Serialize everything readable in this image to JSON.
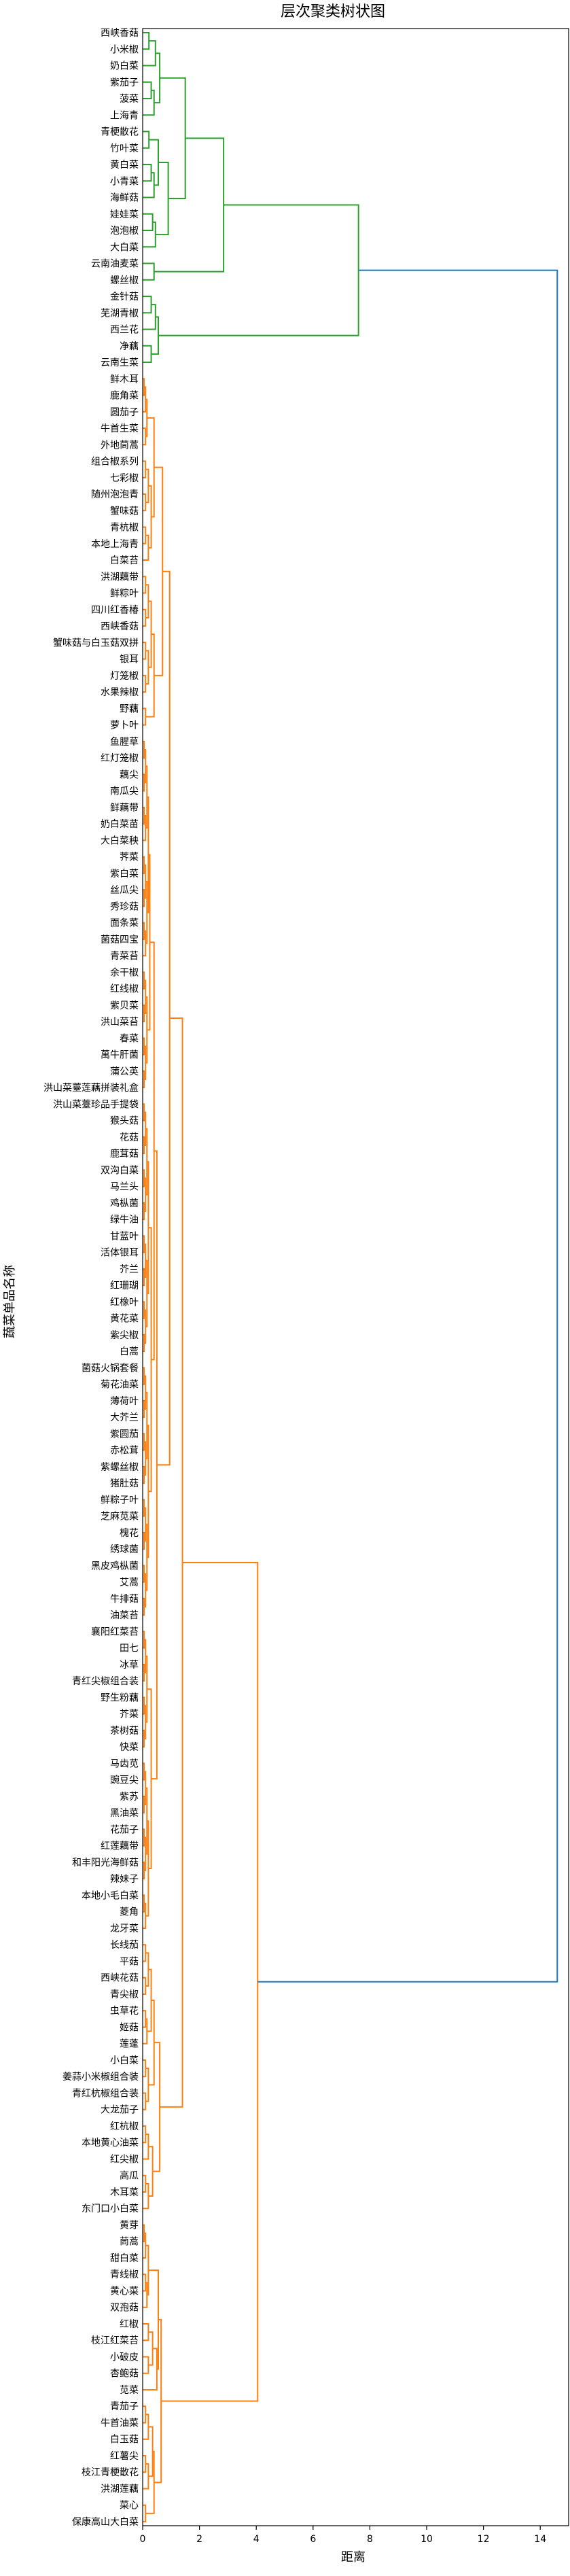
{
  "chart_data": {
    "type": "dendrogram",
    "title": "层次聚类树状图",
    "xlabel": "距离",
    "ylabel": "蔬菜单品名称",
    "xlim": [
      0,
      15
    ],
    "xticks": [
      0,
      2,
      4,
      6,
      8,
      10,
      12,
      14
    ],
    "grid": false,
    "colors": {
      "cluster_green": "#2ca02c",
      "cluster_orange": "#ff7f0e",
      "above_threshold": "#1f77b4",
      "axis": "#000000"
    },
    "leaves": [
      "西峡香菇",
      "小米椒",
      "奶白菜",
      "紫茄子",
      "菠菜",
      "上海青",
      "青梗散花",
      "竹叶菜",
      "黄白菜",
      "小青菜",
      "海鲜菇",
      "娃娃菜",
      "泡泡椒",
      "大白菜",
      "云南油麦菜",
      "螺丝椒",
      "金针菇",
      "芜湖青椒",
      "西兰花",
      "净藕",
      "云南生菜",
      "鲜木耳",
      "鹿角菜",
      "圆茄子",
      "牛首生菜",
      "外地茼蒿",
      "组合椒系列",
      "七彩椒",
      "随州泡泡青",
      "蟹味菇",
      "青杭椒",
      "本地上海青",
      "白菜苔",
      "洪湖藕带",
      "鲜粽叶",
      "四川红香椿",
      "西峡香菇",
      "蟹味菇与白玉菇双拼",
      "银耳",
      "灯笼椒",
      "水果辣椒",
      "野藕",
      "萝卜叶",
      "鱼腥草",
      "红灯笼椒",
      "藕尖",
      "南瓜尖",
      "鲜藕带",
      "奶白菜苗",
      "大白菜秧",
      "荠菜",
      "紫白菜",
      "丝瓜尖",
      "秀珍菇",
      "面条菜",
      "菌菇四宝",
      "青菜苔",
      "余干椒",
      "红线椒",
      "紫贝菜",
      "洪山菜苔",
      "春菜",
      "萬牛肝菌",
      "蒲公英",
      "洪山菜薹莲藕拼装礼盒",
      "洪山菜薹珍品手提袋",
      "猴头菇",
      "花菇",
      "鹿茸菇",
      "双沟白菜",
      "马兰头",
      "鸡枞菌",
      "绿牛油",
      "甘蓝叶",
      "活体银耳",
      "芥兰",
      "红珊瑚",
      "红橡叶",
      "黄花菜",
      "紫尖椒",
      "白蒿",
      "菌菇火锅套餐",
      "菊花油菜",
      "薄荷叶",
      "大芥兰",
      "紫圆茄",
      "赤松茸",
      "紫螺丝椒",
      "猪肚菇",
      "鲜粽子叶",
      "芝麻苋菜",
      "槐花",
      "绣球菌",
      "黑皮鸡枞菌",
      "艾蒿",
      "牛排菇",
      "油菜苔",
      "襄阳红菜苔",
      "田七",
      "冰草",
      "青红尖椒组合装",
      "野生粉藕",
      "芥菜",
      "茶树菇",
      "快菜",
      "马齿苋",
      "豌豆尖",
      "紫苏",
      "黑油菜",
      "花茄子",
      "红莲藕带",
      "和丰阳光海鲜菇",
      "辣妹子",
      "本地小毛白菜",
      "菱角",
      "龙牙菜",
      "长线茄",
      "平菇",
      "西峡花菇",
      "青尖椒",
      "虫草花",
      "姬菇",
      "莲蓬",
      "小白菜",
      "姜蒜小米椒组合装",
      "青红杭椒组合装",
      "大龙茄子",
      "红杭椒",
      "本地黄心油菜",
      "红尖椒",
      "高瓜",
      "木耳菜",
      "东门口小白菜",
      "黄芽",
      "茼蒿",
      "甜白菜",
      "青线椒",
      "黄心菜",
      "双孢菇",
      "红椒",
      "枝江红菜苔",
      "小破皮",
      "杏鲍菇",
      "苋菜",
      "青茄子",
      "牛首油菜",
      "白玉菇",
      "红薯尖",
      "枝江青梗散花",
      "洪湖莲藕",
      "菜心",
      "保康高山大白菜"
    ],
    "merges": [
      {
        "k": "g01",
        "a": 0,
        "b": 1,
        "h": 0.22,
        "c": "green"
      },
      {
        "k": "g02",
        "a": "g01",
        "b": 2,
        "h": 0.45,
        "c": "green"
      },
      {
        "k": "g03",
        "a": 3,
        "b": 4,
        "h": 0.3,
        "c": "green"
      },
      {
        "k": "g04",
        "a": "g03",
        "b": 5,
        "h": 0.4,
        "c": "green"
      },
      {
        "k": "g05",
        "a": "g02",
        "b": "g04",
        "h": 0.6,
        "c": "green"
      },
      {
        "k": "g06",
        "a": 6,
        "b": 7,
        "h": 0.22,
        "c": "green"
      },
      {
        "k": "g07",
        "a": 8,
        "b": 9,
        "h": 0.3,
        "c": "green"
      },
      {
        "k": "g08",
        "a": "g07",
        "b": 10,
        "h": 0.4,
        "c": "green"
      },
      {
        "k": "g09",
        "a": "g06",
        "b": "g08",
        "h": 0.55,
        "c": "green"
      },
      {
        "k": "g10",
        "a": 11,
        "b": 12,
        "h": 0.35,
        "c": "green"
      },
      {
        "k": "g11",
        "a": "g10",
        "b": 13,
        "h": 0.45,
        "c": "green"
      },
      {
        "k": "g12",
        "a": "g09",
        "b": "g11",
        "h": 0.9,
        "c": "green"
      },
      {
        "k": "g13",
        "a": "g05",
        "b": "g12",
        "h": 1.5,
        "c": "green"
      },
      {
        "k": "g14",
        "a": 14,
        "b": 15,
        "h": 0.4,
        "c": "green"
      },
      {
        "k": "g15",
        "a": "g13",
        "b": "g14",
        "h": 2.85,
        "c": "green"
      },
      {
        "k": "g16",
        "a": 16,
        "b": 17,
        "h": 0.3,
        "c": "green"
      },
      {
        "k": "g17",
        "a": "g16",
        "b": 18,
        "h": 0.45,
        "c": "green"
      },
      {
        "k": "g18",
        "a": 19,
        "b": 20,
        "h": 0.3,
        "c": "green"
      },
      {
        "k": "g19",
        "a": "g17",
        "b": "g18",
        "h": 0.55,
        "c": "green"
      },
      {
        "k": "g20",
        "a": "g15",
        "b": "g19",
        "h": 7.6,
        "c": "green"
      },
      {
        "k": "o01",
        "a": 21,
        "b": 22,
        "h": 0.05,
        "c": "orange"
      },
      {
        "k": "o02",
        "a": "o01",
        "b": 23,
        "h": 0.1,
        "c": "orange"
      },
      {
        "k": "o03",
        "a": 24,
        "b": 25,
        "h": 0.1,
        "c": "orange"
      },
      {
        "k": "o04",
        "a": "o02",
        "b": "o03",
        "h": 0.15,
        "c": "orange"
      },
      {
        "k": "o05",
        "a": 26,
        "b": 27,
        "h": 0.1,
        "c": "orange"
      },
      {
        "k": "o06",
        "a": 28,
        "b": 29,
        "h": 0.1,
        "c": "orange"
      },
      {
        "k": "o07",
        "a": "o05",
        "b": "o06",
        "h": 0.2,
        "c": "orange"
      },
      {
        "k": "o08",
        "a": 30,
        "b": 31,
        "h": 0.1,
        "c": "orange"
      },
      {
        "k": "o09",
        "a": "o08",
        "b": 32,
        "h": 0.2,
        "c": "orange"
      },
      {
        "k": "o10",
        "a": "o07",
        "b": "o09",
        "h": 0.3,
        "c": "orange"
      },
      {
        "k": "o11",
        "a": "o04",
        "b": "o10",
        "h": 0.4,
        "c": "orange"
      },
      {
        "k": "o12",
        "a": 33,
        "b": 34,
        "h": 0.1,
        "c": "orange"
      },
      {
        "k": "o13",
        "a": 35,
        "b": 36,
        "h": 0.1,
        "c": "orange"
      },
      {
        "k": "o14",
        "a": "o12",
        "b": "o13",
        "h": 0.2,
        "c": "orange"
      },
      {
        "k": "o15",
        "a": 37,
        "b": 38,
        "h": 0.1,
        "c": "orange"
      },
      {
        "k": "o16",
        "a": 39,
        "b": 40,
        "h": 0.1,
        "c": "orange"
      },
      {
        "k": "o17",
        "a": "o15",
        "b": "o16",
        "h": 0.2,
        "c": "orange"
      },
      {
        "k": "o18",
        "a": "o14",
        "b": "o17",
        "h": 0.3,
        "c": "orange"
      },
      {
        "k": "o19",
        "a": 41,
        "b": 42,
        "h": 0.1,
        "c": "orange"
      },
      {
        "k": "o20",
        "a": "o18",
        "b": "o19",
        "h": 0.4,
        "c": "orange"
      },
      {
        "k": "o21",
        "a": "o11",
        "b": "o20",
        "h": 0.7,
        "c": "orange"
      },
      {
        "k": "o22",
        "a": 43,
        "b": 44,
        "h": 0.05,
        "c": "orange"
      },
      {
        "k": "o23",
        "a": 45,
        "b": 46,
        "h": 0.05,
        "c": "orange"
      },
      {
        "k": "o24",
        "a": "o22",
        "b": "o23",
        "h": 0.1,
        "c": "orange"
      },
      {
        "k": "o25",
        "a": 47,
        "b": 48,
        "h": 0.05,
        "c": "orange"
      },
      {
        "k": "o26",
        "a": "o25",
        "b": 49,
        "h": 0.1,
        "c": "orange"
      },
      {
        "k": "o27",
        "a": "o24",
        "b": "o26",
        "h": 0.15,
        "c": "orange"
      },
      {
        "k": "o28",
        "a": 50,
        "b": 51,
        "h": 0.05,
        "c": "orange"
      },
      {
        "k": "o29",
        "a": 52,
        "b": 53,
        "h": 0.05,
        "c": "orange"
      },
      {
        "k": "o30",
        "a": "o28",
        "b": "o29",
        "h": 0.1,
        "c": "orange"
      },
      {
        "k": "o31",
        "a": 54,
        "b": 55,
        "h": 0.05,
        "c": "orange"
      },
      {
        "k": "o32",
        "a": "o31",
        "b": 56,
        "h": 0.1,
        "c": "orange"
      },
      {
        "k": "o33",
        "a": "o30",
        "b": "o32",
        "h": 0.15,
        "c": "orange"
      },
      {
        "k": "o34",
        "a": "o27",
        "b": "o33",
        "h": 0.2,
        "c": "orange"
      },
      {
        "k": "o35",
        "a": 57,
        "b": 58,
        "h": 0.05,
        "c": "orange"
      },
      {
        "k": "o36",
        "a": 59,
        "b": 60,
        "h": 0.05,
        "c": "orange"
      },
      {
        "k": "o37",
        "a": "o35",
        "b": "o36",
        "h": 0.1,
        "c": "orange"
      },
      {
        "k": "o38",
        "a": 61,
        "b": 62,
        "h": 0.05,
        "c": "orange"
      },
      {
        "k": "o39",
        "a": 63,
        "b": 64,
        "h": 0.05,
        "c": "orange"
      },
      {
        "k": "o40",
        "a": "o38",
        "b": "o39",
        "h": 0.1,
        "c": "orange"
      },
      {
        "k": "o41",
        "a": "o37",
        "b": "o40",
        "h": 0.15,
        "c": "orange"
      },
      {
        "k": "o42",
        "a": "o34",
        "b": "o41",
        "h": 0.25,
        "c": "orange"
      },
      {
        "k": "o43",
        "a": 65,
        "b": 66,
        "h": 0.05,
        "c": "orange"
      },
      {
        "k": "o44",
        "a": 67,
        "b": 68,
        "h": 0.05,
        "c": "orange"
      },
      {
        "k": "o45",
        "a": "o43",
        "b": "o44",
        "h": 0.1,
        "c": "orange"
      },
      {
        "k": "o46",
        "a": 69,
        "b": 70,
        "h": 0.05,
        "c": "orange"
      },
      {
        "k": "o47",
        "a": 71,
        "b": 72,
        "h": 0.05,
        "c": "orange"
      },
      {
        "k": "o48",
        "a": "o46",
        "b": "o47",
        "h": 0.1,
        "c": "orange"
      },
      {
        "k": "o49",
        "a": "o45",
        "b": "o48",
        "h": 0.15,
        "c": "orange"
      },
      {
        "k": "o50",
        "a": 73,
        "b": 74,
        "h": 0.05,
        "c": "orange"
      },
      {
        "k": "o51",
        "a": 75,
        "b": 76,
        "h": 0.05,
        "c": "orange"
      },
      {
        "k": "o52",
        "a": "o50",
        "b": "o51",
        "h": 0.1,
        "c": "orange"
      },
      {
        "k": "o53",
        "a": 77,
        "b": 78,
        "h": 0.05,
        "c": "orange"
      },
      {
        "k": "o54",
        "a": 79,
        "b": 80,
        "h": 0.05,
        "c": "orange"
      },
      {
        "k": "o55",
        "a": "o53",
        "b": "o54",
        "h": 0.1,
        "c": "orange"
      },
      {
        "k": "o56",
        "a": "o52",
        "b": "o55",
        "h": 0.15,
        "c": "orange"
      },
      {
        "k": "o57",
        "a": "o49",
        "b": "o56",
        "h": 0.2,
        "c": "orange"
      },
      {
        "k": "o58",
        "a": 81,
        "b": 82,
        "h": 0.05,
        "c": "orange"
      },
      {
        "k": "o59",
        "a": 83,
        "b": 84,
        "h": 0.05,
        "c": "orange"
      },
      {
        "k": "o60",
        "a": "o58",
        "b": "o59",
        "h": 0.1,
        "c": "orange"
      },
      {
        "k": "o61",
        "a": 85,
        "b": 86,
        "h": 0.05,
        "c": "orange"
      },
      {
        "k": "o62",
        "a": 87,
        "b": 88,
        "h": 0.05,
        "c": "orange"
      },
      {
        "k": "o63",
        "a": "o61",
        "b": "o62",
        "h": 0.1,
        "c": "orange"
      },
      {
        "k": "o64",
        "a": "o60",
        "b": "o63",
        "h": 0.15,
        "c": "orange"
      },
      {
        "k": "o65",
        "a": 89,
        "b": 90,
        "h": 0.05,
        "c": "orange"
      },
      {
        "k": "o66",
        "a": 91,
        "b": 92,
        "h": 0.05,
        "c": "orange"
      },
      {
        "k": "o67",
        "a": "o65",
        "b": "o66",
        "h": 0.1,
        "c": "orange"
      },
      {
        "k": "o68",
        "a": 93,
        "b": 94,
        "h": 0.05,
        "c": "orange"
      },
      {
        "k": "o69",
        "a": 95,
        "b": 96,
        "h": 0.05,
        "c": "orange"
      },
      {
        "k": "o70",
        "a": "o68",
        "b": "o69",
        "h": 0.1,
        "c": "orange"
      },
      {
        "k": "o71",
        "a": "o67",
        "b": "o70",
        "h": 0.15,
        "c": "orange"
      },
      {
        "k": "o72",
        "a": "o64",
        "b": "o71",
        "h": 0.2,
        "c": "orange"
      },
      {
        "k": "o73",
        "a": "o57",
        "b": "o72",
        "h": 0.3,
        "c": "orange"
      },
      {
        "k": "o74",
        "a": "o42",
        "b": "o73",
        "h": 0.4,
        "c": "orange"
      },
      {
        "k": "o75",
        "a": 97,
        "b": 98,
        "h": 0.05,
        "c": "orange"
      },
      {
        "k": "o76",
        "a": 99,
        "b": 100,
        "h": 0.05,
        "c": "orange"
      },
      {
        "k": "o77",
        "a": "o75",
        "b": "o76",
        "h": 0.1,
        "c": "orange"
      },
      {
        "k": "o78",
        "a": 101,
        "b": 102,
        "h": 0.05,
        "c": "orange"
      },
      {
        "k": "o79",
        "a": 103,
        "b": 104,
        "h": 0.05,
        "c": "orange"
      },
      {
        "k": "o80",
        "a": "o78",
        "b": "o79",
        "h": 0.1,
        "c": "orange"
      },
      {
        "k": "o81",
        "a": "o77",
        "b": "o80",
        "h": 0.15,
        "c": "orange"
      },
      {
        "k": "o82",
        "a": 105,
        "b": 106,
        "h": 0.05,
        "c": "orange"
      },
      {
        "k": "o83",
        "a": 107,
        "b": 108,
        "h": 0.05,
        "c": "orange"
      },
      {
        "k": "o84",
        "a": "o82",
        "b": "o83",
        "h": 0.1,
        "c": "orange"
      },
      {
        "k": "o85",
        "a": 109,
        "b": 110,
        "h": 0.05,
        "c": "orange"
      },
      {
        "k": "o86",
        "a": 111,
        "b": 112,
        "h": 0.05,
        "c": "orange"
      },
      {
        "k": "o87",
        "a": "o85",
        "b": "o86",
        "h": 0.1,
        "c": "orange"
      },
      {
        "k": "o88",
        "a": "o84",
        "b": "o87",
        "h": 0.15,
        "c": "orange"
      },
      {
        "k": "o89",
        "a": 113,
        "b": 114,
        "h": 0.05,
        "c": "orange"
      },
      {
        "k": "o90",
        "a": "o89",
        "b": 115,
        "h": 0.1,
        "c": "orange"
      },
      {
        "k": "o91",
        "a": "o88",
        "b": "o90",
        "h": 0.2,
        "c": "orange"
      },
      {
        "k": "o92",
        "a": "o81",
        "b": "o91",
        "h": 0.3,
        "c": "orange"
      },
      {
        "k": "o93",
        "a": "o74",
        "b": "o92",
        "h": 0.5,
        "c": "orange"
      },
      {
        "k": "o94",
        "a": "o21",
        "b": "o93",
        "h": 0.95,
        "c": "orange"
      },
      {
        "k": "p01",
        "a": 116,
        "b": 117,
        "h": 0.1,
        "c": "orange"
      },
      {
        "k": "p02",
        "a": 118,
        "b": 119,
        "h": 0.1,
        "c": "orange"
      },
      {
        "k": "p03",
        "a": "p01",
        "b": "p02",
        "h": 0.2,
        "c": "orange"
      },
      {
        "k": "p04",
        "a": 120,
        "b": 121,
        "h": 0.1,
        "c": "orange"
      },
      {
        "k": "p05",
        "a": "p04",
        "b": 122,
        "h": 0.15,
        "c": "orange"
      },
      {
        "k": "p06",
        "a": "p03",
        "b": "p05",
        "h": 0.3,
        "c": "orange"
      },
      {
        "k": "p07",
        "a": 123,
        "b": 124,
        "h": 0.1,
        "c": "orange"
      },
      {
        "k": "p08",
        "a": 125,
        "b": 126,
        "h": 0.1,
        "c": "orange"
      },
      {
        "k": "p09",
        "a": "p07",
        "b": "p08",
        "h": 0.2,
        "c": "orange"
      },
      {
        "k": "p10",
        "a": "p06",
        "b": "p09",
        "h": 0.4,
        "c": "orange"
      },
      {
        "k": "p11",
        "a": 127,
        "b": 128,
        "h": 0.1,
        "c": "orange"
      },
      {
        "k": "p12",
        "a": "p11",
        "b": 129,
        "h": 0.2,
        "c": "orange"
      },
      {
        "k": "p13",
        "a": 130,
        "b": 131,
        "h": 0.1,
        "c": "orange"
      },
      {
        "k": "p14",
        "a": "p13",
        "b": 132,
        "h": 0.2,
        "c": "orange"
      },
      {
        "k": "p15",
        "a": "p12",
        "b": "p14",
        "h": 0.35,
        "c": "orange"
      },
      {
        "k": "p16",
        "a": "p10",
        "b": "p15",
        "h": 0.6,
        "c": "orange"
      },
      {
        "k": "p17",
        "a": "o94",
        "b": "p16",
        "h": 1.4,
        "c": "orange"
      },
      {
        "k": "q01",
        "a": 133,
        "b": 134,
        "h": 0.05,
        "c": "orange"
      },
      {
        "k": "q02",
        "a": "q01",
        "b": 135,
        "h": 0.1,
        "c": "orange"
      },
      {
        "k": "q03",
        "a": 136,
        "b": 137,
        "h": 0.1,
        "c": "orange"
      },
      {
        "k": "q04",
        "a": "q03",
        "b": 138,
        "h": 0.15,
        "c": "orange"
      },
      {
        "k": "q05",
        "a": "q02",
        "b": "q04",
        "h": 0.2,
        "c": "orange"
      },
      {
        "k": "q06",
        "a": 139,
        "b": 140,
        "h": 0.2,
        "c": "orange"
      },
      {
        "k": "q07",
        "a": 141,
        "b": 142,
        "h": 0.2,
        "c": "orange"
      },
      {
        "k": "q08",
        "a": "q06",
        "b": "q07",
        "h": 0.35,
        "c": "orange"
      },
      {
        "k": "q09",
        "a": "q08",
        "b": 143,
        "h": 0.5,
        "c": "orange"
      },
      {
        "k": "q10",
        "a": "q05",
        "b": "q09",
        "h": 0.55,
        "c": "orange"
      },
      {
        "k": "q11",
        "a": 144,
        "b": 145,
        "h": 0.1,
        "c": "orange"
      },
      {
        "k": "q12",
        "a": "q11",
        "b": 146,
        "h": 0.2,
        "c": "orange"
      },
      {
        "k": "q13",
        "a": 147,
        "b": 148,
        "h": 0.1,
        "c": "orange"
      },
      {
        "k": "q14",
        "a": "q13",
        "b": 149,
        "h": 0.2,
        "c": "orange"
      },
      {
        "k": "q15",
        "a": "q12",
        "b": "q14",
        "h": 0.35,
        "c": "orange"
      },
      {
        "k": "q16",
        "a": 150,
        "b": 151,
        "h": 0.1,
        "c": "orange"
      },
      {
        "k": "q17",
        "a": "q15",
        "b": "q16",
        "h": 0.4,
        "c": "orange"
      },
      {
        "k": "q18",
        "a": "q10",
        "b": "q17",
        "h": 0.65,
        "c": "orange"
      },
      {
        "k": "q19",
        "a": "p17",
        "b": "q18",
        "h": 4.05,
        "c": "orange"
      },
      {
        "k": "top",
        "a": "g20",
        "b": "q19",
        "h": 14.6,
        "c": "blue"
      }
    ]
  }
}
